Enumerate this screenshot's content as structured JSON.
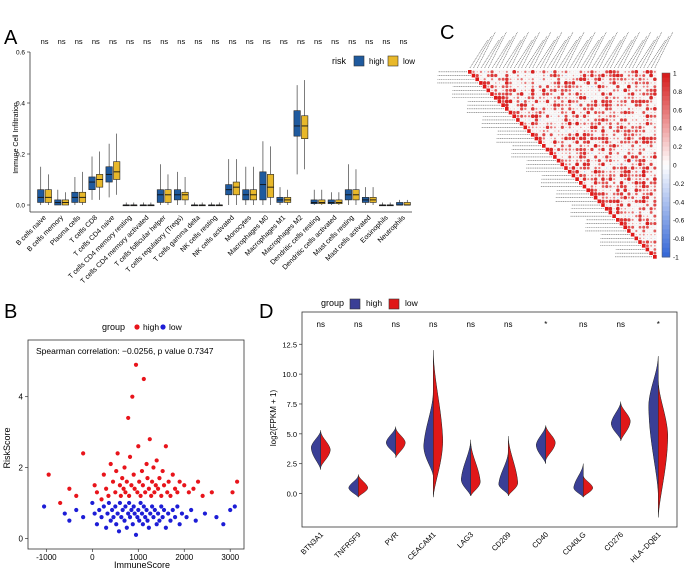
{
  "colors": {
    "high": "#1f5a9e",
    "low": "#e8b82a",
    "group_high": "#e8141b",
    "group_low": "#1d1dd6",
    "violin_high": "#3a3f96",
    "violin_low": "#e01818"
  },
  "panel_labels": {
    "a": "A",
    "b": "B",
    "c": "C",
    "d": "D"
  },
  "chart_data": [
    {
      "panel": "A",
      "type": "box",
      "ylabel": "Immune Cell Infiltration",
      "ylim": [
        0,
        0.6
      ],
      "yticks": [
        "0.0",
        "0.2",
        "0.4",
        "0.6"
      ],
      "legend": {
        "title": "risk",
        "items": [
          "high",
          "low"
        ]
      },
      "categories": [
        "B cells naive",
        "B cells memory",
        "Plasma cells",
        "T cells CD8",
        "T cells CD4 naive",
        "T cells CD4 memory resting",
        "T cells CD4 memory activated",
        "T cells follicular helper",
        "T cells regulatory (Tregs)",
        "T cells gamma delta",
        "NK cells resting",
        "NK cells activated",
        "Monocytes",
        "Macrophages M0",
        "Macrophages M1",
        "Macrophages M2",
        "Dendritic cells resting",
        "Dendritic cells activated",
        "Mast cells resting",
        "Mast cells activated",
        "Eosinophils",
        "Neutrophils"
      ],
      "significance": [
        "ns",
        "ns",
        "ns",
        "ns",
        "ns",
        "ns",
        "ns",
        "ns",
        "ns",
        "ns",
        "ns",
        "ns",
        "ns",
        "ns",
        "ns",
        "ns",
        "ns",
        "ns",
        "ns",
        "ns",
        "ns",
        "ns"
      ],
      "high": [
        [
          0,
          0.01,
          0.03,
          0.06,
          0.15
        ],
        [
          0,
          0,
          0.01,
          0.02,
          0.06
        ],
        [
          0,
          0.01,
          0.03,
          0.05,
          0.11
        ],
        [
          0.02,
          0.06,
          0.09,
          0.11,
          0.19
        ],
        [
          0.03,
          0.09,
          0.12,
          0.15,
          0.24
        ],
        [
          0,
          0,
          0,
          0,
          0.01
        ],
        [
          0,
          0,
          0,
          0,
          0.01
        ],
        [
          0,
          0.01,
          0.04,
          0.06,
          0.16
        ],
        [
          0,
          0.02,
          0.04,
          0.06,
          0.13
        ],
        [
          0,
          0,
          0,
          0,
          0.01
        ],
        [
          0,
          0,
          0,
          0,
          0.01
        ],
        [
          0,
          0.04,
          0.06,
          0.08,
          0.18
        ],
        [
          0,
          0.02,
          0.04,
          0.06,
          0.15
        ],
        [
          0,
          0.02,
          0.08,
          0.13,
          0.25
        ],
        [
          0,
          0.01,
          0.02,
          0.03,
          0.07
        ],
        [
          0.12,
          0.27,
          0.31,
          0.37,
          0.47
        ],
        [
          0,
          0.005,
          0.01,
          0.02,
          0.06
        ],
        [
          0,
          0.005,
          0.01,
          0.02,
          0.05
        ],
        [
          0,
          0.02,
          0.04,
          0.06,
          0.16
        ],
        [
          0,
          0.01,
          0.02,
          0.03,
          0.07
        ],
        [
          0,
          0,
          0,
          0,
          0.01
        ],
        [
          0,
          0,
          0,
          0.01,
          0.02
        ]
      ],
      "low": [
        [
          0,
          0.01,
          0.03,
          0.06,
          0.12
        ],
        [
          0,
          0,
          0.01,
          0.02,
          0.05
        ],
        [
          0,
          0.01,
          0.03,
          0.05,
          0.13
        ],
        [
          0.02,
          0.07,
          0.1,
          0.12,
          0.21
        ],
        [
          0.04,
          0.1,
          0.13,
          0.17,
          0.28
        ],
        [
          0,
          0,
          0,
          0,
          0.01
        ],
        [
          0,
          0,
          0,
          0,
          0.01
        ],
        [
          0,
          0.01,
          0.04,
          0.06,
          0.12
        ],
        [
          0,
          0.02,
          0.04,
          0.05,
          0.11
        ],
        [
          0,
          0,
          0,
          0,
          0.01
        ],
        [
          0,
          0,
          0,
          0,
          0.01
        ],
        [
          0,
          0.04,
          0.07,
          0.09,
          0.18
        ],
        [
          0,
          0.02,
          0.04,
          0.06,
          0.15
        ],
        [
          0,
          0.03,
          0.07,
          0.12,
          0.23
        ],
        [
          0,
          0.01,
          0.02,
          0.03,
          0.06
        ],
        [
          0.14,
          0.26,
          0.31,
          0.35,
          0.49
        ],
        [
          0,
          0.005,
          0.01,
          0.02,
          0.06
        ],
        [
          0,
          0.005,
          0.01,
          0.02,
          0.05
        ],
        [
          0,
          0.02,
          0.04,
          0.06,
          0.14
        ],
        [
          0,
          0.01,
          0.02,
          0.03,
          0.07
        ],
        [
          0,
          0,
          0,
          0,
          0.01
        ],
        [
          0,
          0,
          0,
          0.01,
          0.02
        ]
      ]
    },
    {
      "panel": "C",
      "type": "heatmap",
      "colorbar_ticks": [
        "1",
        "0.8",
        "0.6",
        "0.4",
        "0.2",
        "0",
        "-0.2",
        "-0.4",
        "-0.6",
        "-0.8",
        "-1"
      ],
      "n_variables": 51
    },
    {
      "panel": "B",
      "type": "scatter",
      "xlabel": "ImmuneScore",
      "ylabel": "RiskScore",
      "xlim": [
        -1400,
        3300
      ],
      "ylim": [
        -0.3,
        5.6
      ],
      "xticks": [
        "-1000",
        "0",
        "1000",
        "2000",
        "3000"
      ],
      "yticks": [
        "0",
        "2",
        "4"
      ],
      "legend": {
        "title": "group",
        "items": [
          "high",
          "low"
        ]
      },
      "annotation": "Spearman correlation: −0.0256,  p value 0.7347",
      "high": [
        [
          -950,
          1.8
        ],
        [
          -700,
          1.0
        ],
        [
          -500,
          1.4
        ],
        [
          -350,
          1.2
        ],
        [
          -200,
          2.4
        ],
        [
          50,
          1.5
        ],
        [
          100,
          1.3
        ],
        [
          200,
          1.1
        ],
        [
          250,
          1.8
        ],
        [
          300,
          1.4
        ],
        [
          350,
          1.2
        ],
        [
          400,
          2.1
        ],
        [
          450,
          1.6
        ],
        [
          500,
          1.3
        ],
        [
          520,
          1.9
        ],
        [
          550,
          2.4
        ],
        [
          600,
          1.5
        ],
        [
          620,
          1.2
        ],
        [
          650,
          1.7
        ],
        [
          680,
          1.4
        ],
        [
          700,
          2.0
        ],
        [
          720,
          1.3
        ],
        [
          750,
          1.6
        ],
        [
          780,
          3.4
        ],
        [
          800,
          1.2
        ],
        [
          820,
          2.3
        ],
        [
          850,
          1.5
        ],
        [
          870,
          4.0
        ],
        [
          900,
          1.8
        ],
        [
          920,
          1.4
        ],
        [
          950,
          4.9
        ],
        [
          980,
          1.3
        ],
        [
          1000,
          2.6
        ],
        [
          1020,
          1.6
        ],
        [
          1050,
          1.2
        ],
        [
          1080,
          1.9
        ],
        [
          1100,
          1.5
        ],
        [
          1120,
          4.5
        ],
        [
          1150,
          1.3
        ],
        [
          1180,
          2.1
        ],
        [
          1200,
          1.7
        ],
        [
          1230,
          1.4
        ],
        [
          1250,
          2.8
        ],
        [
          1280,
          1.2
        ],
        [
          1300,
          1.6
        ],
        [
          1330,
          2.0
        ],
        [
          1350,
          1.3
        ],
        [
          1380,
          1.5
        ],
        [
          1400,
          2.2
        ],
        [
          1430,
          1.4
        ],
        [
          1460,
          1.7
        ],
        [
          1500,
          1.2
        ],
        [
          1530,
          1.9
        ],
        [
          1560,
          1.5
        ],
        [
          1600,
          2.6
        ],
        [
          1630,
          1.3
        ],
        [
          1660,
          1.6
        ],
        [
          1700,
          1.2
        ],
        [
          1750,
          1.8
        ],
        [
          1800,
          1.4
        ],
        [
          1850,
          1.3
        ],
        [
          1900,
          1.6
        ],
        [
          2000,
          1.5
        ],
        [
          2100,
          1.3
        ],
        [
          2200,
          1.4
        ],
        [
          2300,
          1.6
        ],
        [
          2400,
          1.2
        ],
        [
          2600,
          1.3
        ],
        [
          3050,
          1.3
        ],
        [
          3150,
          1.6
        ]
      ],
      "low": [
        [
          -1050,
          0.9
        ],
        [
          -600,
          0.7
        ],
        [
          -500,
          0.5
        ],
        [
          -350,
          0.8
        ],
        [
          -200,
          0.6
        ],
        [
          0,
          1.0
        ],
        [
          50,
          0.7
        ],
        [
          100,
          0.4
        ],
        [
          150,
          0.8
        ],
        [
          200,
          0.6
        ],
        [
          250,
          0.9
        ],
        [
          300,
          0.3
        ],
        [
          330,
          0.7
        ],
        [
          360,
          1.0
        ],
        [
          400,
          0.5
        ],
        [
          430,
          0.8
        ],
        [
          460,
          0.6
        ],
        [
          500,
          0.9
        ],
        [
          520,
          0.4
        ],
        [
          550,
          0.7
        ],
        [
          580,
          0.2
        ],
        [
          600,
          1.0
        ],
        [
          630,
          0.6
        ],
        [
          660,
          0.8
        ],
        [
          700,
          0.5
        ],
        [
          720,
          0.9
        ],
        [
          750,
          0.3
        ],
        [
          780,
          0.7
        ],
        [
          800,
          1.0
        ],
        [
          820,
          0.6
        ],
        [
          850,
          0.8
        ],
        [
          880,
          0.4
        ],
        [
          900,
          0.9
        ],
        [
          920,
          0.7
        ],
        [
          950,
          0.1
        ],
        [
          980,
          0.6
        ],
        [
          1000,
          0.8
        ],
        [
          1020,
          0.5
        ],
        [
          1050,
          1.0
        ],
        [
          1080,
          0.7
        ],
        [
          1100,
          0.4
        ],
        [
          1120,
          0.9
        ],
        [
          1150,
          0.6
        ],
        [
          1180,
          0.8
        ],
        [
          1200,
          0.5
        ],
        [
          1230,
          0.3
        ],
        [
          1260,
          0.7
        ],
        [
          1300,
          0.9
        ],
        [
          1330,
          0.6
        ],
        [
          1360,
          0.8
        ],
        [
          1400,
          0.4
        ],
        [
          1430,
          0.7
        ],
        [
          1460,
          0.5
        ],
        [
          1500,
          0.9
        ],
        [
          1530,
          0.6
        ],
        [
          1560,
          0.8
        ],
        [
          1600,
          0.3
        ],
        [
          1650,
          0.7
        ],
        [
          1700,
          0.5
        ],
        [
          1750,
          0.8
        ],
        [
          1800,
          0.6
        ],
        [
          1850,
          0.9
        ],
        [
          1900,
          0.4
        ],
        [
          1950,
          0.7
        ],
        [
          2050,
          0.6
        ],
        [
          2150,
          0.8
        ],
        [
          2250,
          0.5
        ],
        [
          2450,
          0.7
        ],
        [
          2700,
          0.6
        ],
        [
          2850,
          0.4
        ],
        [
          3000,
          0.8
        ],
        [
          3100,
          0.9
        ]
      ]
    },
    {
      "panel": "D",
      "type": "violin",
      "ylabel": "log2(FPKM + 1)",
      "ylim": [
        -2.8,
        15.2
      ],
      "yticks": [
        "0.0",
        "2.5",
        "5.0",
        "7.5",
        "10.0",
        "12.5"
      ],
      "legend": {
        "title": "group",
        "items": [
          "high",
          "low"
        ]
      },
      "categories": [
        "BTN3A1",
        "TNFRSF9",
        "PVR",
        "CEACAM1",
        "LAG3",
        "CD209",
        "CD40",
        "CD40LG",
        "CD276",
        "HLA−DQB1"
      ],
      "significance": [
        "ns",
        "ns",
        "ns",
        "ns",
        "ns",
        "ns",
        "*",
        "ns",
        "ns",
        "*"
      ],
      "high": [
        [
          2.0,
          5.3,
          3.9
        ],
        [
          -0.3,
          1.5,
          0.5
        ],
        [
          3.2,
          5.6,
          4.3
        ],
        [
          1.5,
          8.5,
          4.0
        ],
        [
          -0.2,
          4.5,
          1.2
        ],
        [
          -0.1,
          3.5,
          0.8
        ],
        [
          2.5,
          5.7,
          4.1
        ],
        [
          -0.3,
          2.5,
          0.5
        ],
        [
          4.5,
          7.7,
          5.9
        ],
        [
          0.0,
          11.5,
          7.5
        ]
      ],
      "low": [
        [
          2.2,
          5.2,
          3.7
        ],
        [
          -0.3,
          1.6,
          0.5
        ],
        [
          3.0,
          5.5,
          4.3
        ],
        [
          -0.3,
          12.0,
          4.5
        ],
        [
          -0.2,
          4.3,
          1.0
        ],
        [
          -0.2,
          4.8,
          0.9
        ],
        [
          2.8,
          5.7,
          4.3
        ],
        [
          -0.3,
          1.5,
          0.5
        ],
        [
          4.4,
          7.6,
          6.1
        ],
        [
          -2.0,
          9.5,
          5.0
        ]
      ]
    }
  ]
}
